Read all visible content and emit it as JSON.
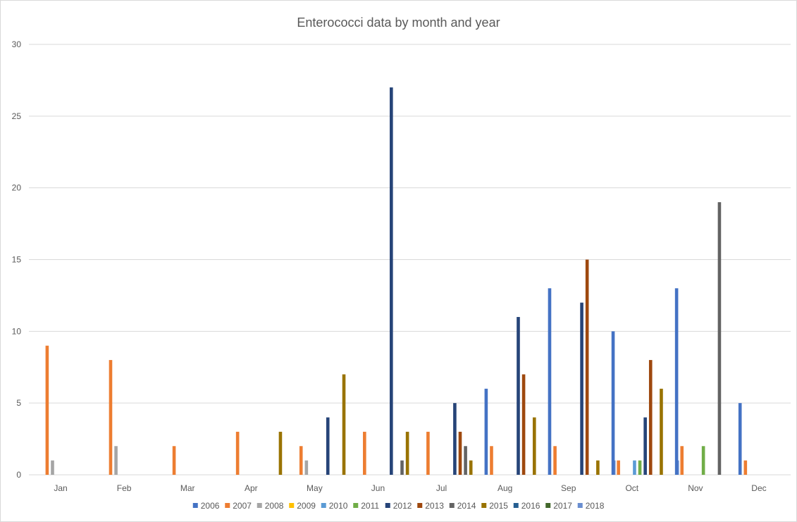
{
  "chart_data": {
    "type": "bar",
    "title": "Enterococci data by month and year",
    "xlabel": "",
    "ylabel": "",
    "ylim": [
      0,
      30
    ],
    "yticks": [
      0,
      5,
      10,
      15,
      20,
      25,
      30
    ],
    "grid": true,
    "legend_position": "bottom",
    "categories": [
      "Jan",
      "Feb",
      "Mar",
      "Apr",
      "May",
      "Jun",
      "Jul",
      "Aug",
      "Sep",
      "Oct",
      "Nov",
      "Dec"
    ],
    "series": [
      {
        "name": "2006",
        "color": "#4472c4",
        "values": [
          null,
          null,
          null,
          null,
          null,
          null,
          null,
          6,
          13,
          10,
          13,
          5
        ]
      },
      {
        "name": "2007",
        "color": "#ed7d31",
        "values": [
          9,
          8,
          2,
          3,
          2,
          3,
          3,
          2,
          2,
          1,
          2,
          1
        ]
      },
      {
        "name": "2008",
        "color": "#a5a5a5",
        "values": [
          1,
          2,
          null,
          null,
          1,
          null,
          null,
          null,
          null,
          null,
          null,
          null
        ]
      },
      {
        "name": "2009",
        "color": "#ffc000",
        "values": [
          null,
          null,
          null,
          null,
          null,
          null,
          null,
          null,
          null,
          null,
          null,
          null
        ]
      },
      {
        "name": "2010",
        "color": "#5b9bd5",
        "values": [
          null,
          null,
          null,
          null,
          null,
          null,
          null,
          null,
          null,
          1,
          null,
          null
        ]
      },
      {
        "name": "2011",
        "color": "#70ad47",
        "values": [
          null,
          null,
          null,
          null,
          null,
          null,
          null,
          null,
          null,
          1,
          2,
          null
        ]
      },
      {
        "name": "2012",
        "color": "#264478",
        "values": [
          null,
          null,
          null,
          null,
          4,
          27,
          5,
          11,
          12,
          4,
          null,
          null
        ]
      },
      {
        "name": "2013",
        "color": "#9e480e",
        "values": [
          null,
          null,
          null,
          null,
          null,
          null,
          3,
          7,
          15,
          8,
          null,
          null
        ]
      },
      {
        "name": "2014",
        "color": "#636363",
        "values": [
          null,
          null,
          null,
          null,
          null,
          1,
          2,
          null,
          null,
          null,
          19,
          null
        ]
      },
      {
        "name": "2015",
        "color": "#997300",
        "values": [
          null,
          null,
          null,
          3,
          7,
          3,
          1,
          4,
          1,
          6,
          null,
          null
        ]
      },
      {
        "name": "2016",
        "color": "#255e91",
        "values": [
          null,
          null,
          null,
          null,
          null,
          null,
          null,
          null,
          null,
          null,
          null,
          null
        ]
      },
      {
        "name": "2017",
        "color": "#43682b",
        "values": [
          null,
          null,
          null,
          null,
          null,
          null,
          null,
          null,
          null,
          null,
          null,
          null
        ]
      },
      {
        "name": "2018",
        "color": "#698ed0",
        "values": [
          null,
          null,
          null,
          null,
          null,
          null,
          null,
          null,
          1,
          1,
          null,
          null
        ]
      }
    ]
  }
}
